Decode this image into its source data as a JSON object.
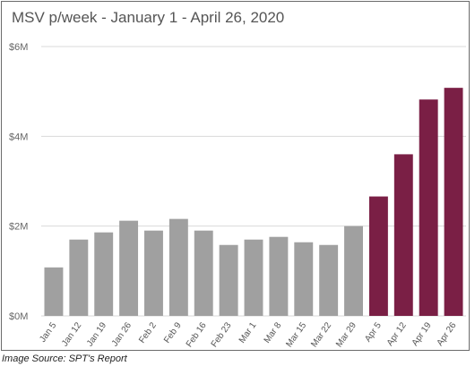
{
  "chart_data": {
    "type": "bar",
    "title": "MSV p/week - January 1 - April  26, 2020",
    "categories": [
      "Jan 5",
      "Jan 12",
      "Jan 19",
      "Jan 26",
      "Feb 2",
      "Feb 9",
      "Feb 16",
      "Feb 23",
      "Mar 1",
      "Mar 8",
      "Mar 15",
      "Mar 22",
      "Mar 29",
      "Apr 5",
      "Apr 12",
      "Apr 19",
      "Apr 26"
    ],
    "values": [
      1.08,
      1.7,
      1.86,
      2.12,
      1.9,
      2.16,
      1.9,
      1.58,
      1.7,
      1.76,
      1.64,
      1.58,
      2.0,
      2.66,
      3.6,
      4.82,
      5.08
    ],
    "unit": "M",
    "ylim": [
      0,
      6
    ],
    "yticks": [
      0,
      2,
      4,
      6
    ],
    "ytick_labels": [
      "$0M",
      "$2M",
      "$4M",
      "$6M"
    ],
    "xlabel": "",
    "ylabel": "",
    "grid": true,
    "colors": {
      "default": "#a0a0a0",
      "highlight": "#7a1f45",
      "grid": "#d9d9d9"
    },
    "highlight_from_index": 13
  },
  "source_text": "Image Source: SPT's Report"
}
